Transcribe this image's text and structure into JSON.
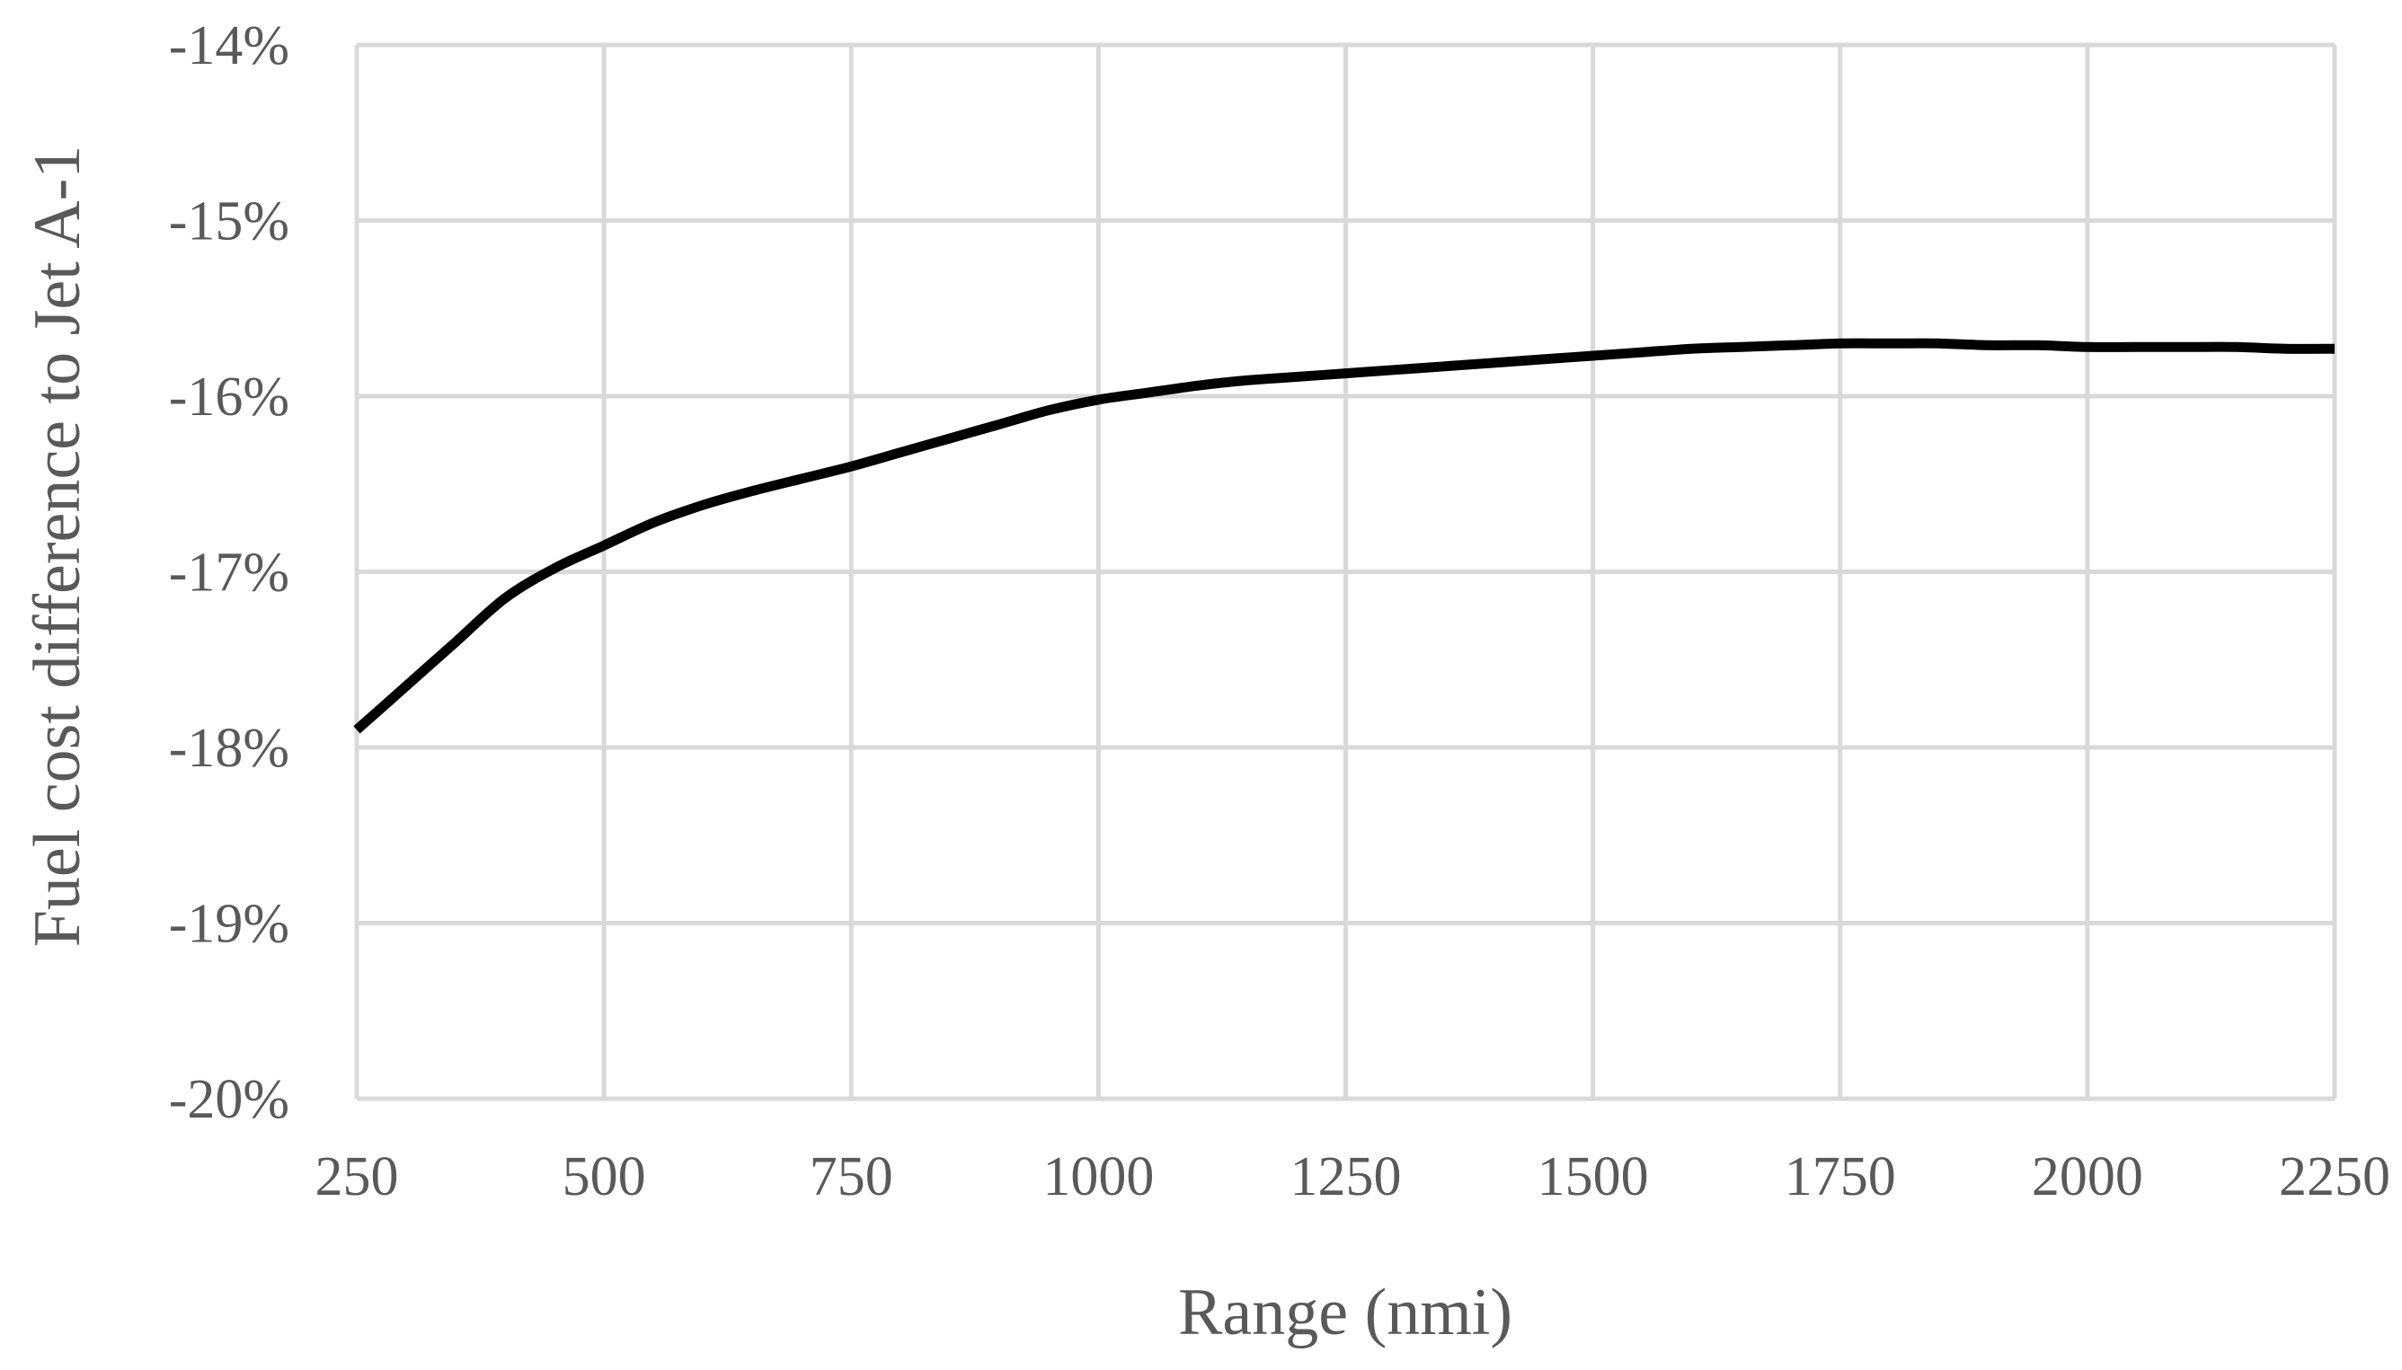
{
  "chart_data": {
    "type": "line",
    "title": "",
    "xlabel": "Range (nmi)",
    "ylabel": "Fuel cost difference to Jet A-1",
    "xlim": [
      250,
      2250
    ],
    "ylim": [
      -20,
      -14
    ],
    "x_ticks": [
      250,
      500,
      750,
      1000,
      1250,
      1500,
      1750,
      2000,
      2250
    ],
    "x_tick_labels": [
      "250",
      "500",
      "750",
      "1000",
      "1250",
      "1500",
      "1750",
      "2000",
      "2250"
    ],
    "y_ticks": [
      -14,
      -15,
      -16,
      -17,
      -18,
      -19,
      -20
    ],
    "y_tick_labels": [
      "-14%",
      "-15%",
      "-16%",
      "-17%",
      "-18%",
      "-19%",
      "-20%"
    ],
    "grid": true,
    "legend": "none",
    "series": [
      {
        "name": "Fuel cost difference",
        "color": "#000000",
        "x": [
          250,
          300,
          350,
          400,
          450,
          500,
          550,
          600,
          650,
          700,
          750,
          800,
          850,
          900,
          950,
          1000,
          1050,
          1100,
          1150,
          1200,
          1250,
          1300,
          1350,
          1400,
          1450,
          1500,
          1550,
          1600,
          1650,
          1700,
          1750,
          1800,
          1850,
          1900,
          1950,
          2000,
          2050,
          2100,
          2150,
          2200,
          2250
        ],
        "values": [
          -17.9,
          -17.65,
          -17.4,
          -17.15,
          -16.98,
          -16.85,
          -16.72,
          -16.62,
          -16.54,
          -16.47,
          -16.4,
          -16.32,
          -16.24,
          -16.16,
          -16.08,
          -16.02,
          -15.98,
          -15.94,
          -15.91,
          -15.89,
          -15.87,
          -15.85,
          -15.83,
          -15.81,
          -15.79,
          -15.77,
          -15.75,
          -15.73,
          -15.72,
          -15.71,
          -15.7,
          -15.7,
          -15.7,
          -15.71,
          -15.71,
          -15.72,
          -15.72,
          -15.72,
          -15.72,
          -15.73,
          -15.73
        ]
      }
    ]
  }
}
